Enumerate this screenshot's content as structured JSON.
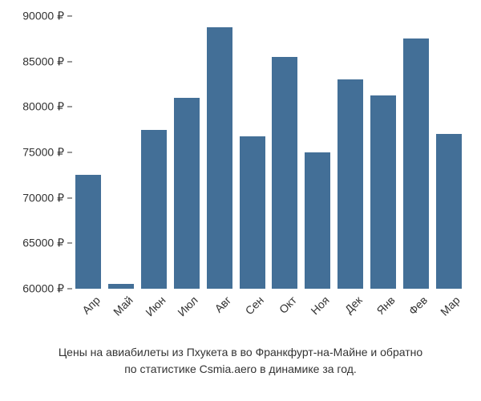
{
  "chart": {
    "type": "bar",
    "categories": [
      "Апр",
      "Май",
      "Июн",
      "Июл",
      "Авг",
      "Сен",
      "Окт",
      "Ноя",
      "Дек",
      "Янв",
      "Фев",
      "Мар"
    ],
    "values": [
      72500,
      60500,
      77500,
      81000,
      88800,
      76800,
      85500,
      75000,
      83000,
      81300,
      87500,
      77000
    ],
    "bar_color": "#436f97",
    "background_color": "#ffffff",
    "text_color": "#333333",
    "ylim": [
      60000,
      90000
    ],
    "ytick_step": 5000,
    "ytick_labels": [
      "60000 ₽",
      "65000 ₽",
      "70000 ₽",
      "75000 ₽",
      "80000 ₽",
      "85000 ₽",
      "90000 ₽"
    ],
    "bar_width_ratio": 0.78,
    "axis_fontsize": 14,
    "caption_fontsize": 14,
    "xlabel_rotation_deg": 45
  },
  "caption": {
    "line1": "Цены на авиабилеты из Пхукета в во Франкфурт-на-Майне и обратно",
    "line2": "по статистике Csmia.aero в динамике за год."
  }
}
